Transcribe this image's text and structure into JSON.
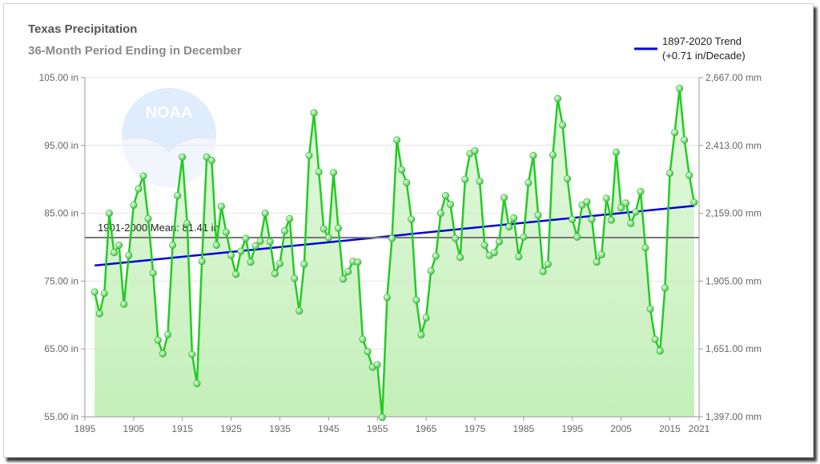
{
  "colors": {
    "series_line": "#22cc22",
    "area_top": "#d6f5d0",
    "area_bottom": "#c4efb8",
    "trend": "#0000dd",
    "mean": "#777777",
    "grid": "#e4e4e4",
    "axis": "#999999"
  },
  "logo_icon": "noaa-logo-icon",
  "logo_text": "NOAA",
  "chart_data": {
    "type": "line",
    "title": "Texas Precipitation",
    "subtitle": "36-Month Period Ending in December",
    "xlim": [
      1895,
      2021
    ],
    "ylim": [
      55,
      105
    ],
    "y2lim": [
      1397,
      2667
    ],
    "x_ticks": [
      1895,
      1905,
      1915,
      1925,
      1935,
      1945,
      1955,
      1965,
      1975,
      1985,
      1995,
      2005,
      2015,
      2021
    ],
    "y_ticks": [
      {
        "value": 55,
        "label": "55.00 in"
      },
      {
        "value": 65,
        "label": "65.00 in"
      },
      {
        "value": 75,
        "label": "75.00 in"
      },
      {
        "value": 85,
        "label": "85.00 in"
      },
      {
        "value": 95,
        "label": "95.00 in"
      },
      {
        "value": 105,
        "label": "105.00 in"
      }
    ],
    "y2_ticks": [
      {
        "value": 1397,
        "label": "1,397.00 mm"
      },
      {
        "value": 1651,
        "label": "1,651.00 mm"
      },
      {
        "value": 1905,
        "label": "1,905.00 mm"
      },
      {
        "value": 2159,
        "label": "2,159.00 mm"
      },
      {
        "value": 2413,
        "label": "2,413.00 mm"
      },
      {
        "value": 2667,
        "label": "2,667.00 mm"
      }
    ],
    "grid": true,
    "legend_position": "top-right",
    "legend": [
      {
        "line1": "1897-2020 Trend",
        "line2": "(+0.71 in/Decade)"
      }
    ],
    "mean": {
      "label": "1901-2000 Mean: 81.41 in",
      "value": 81.41
    },
    "trend": {
      "x": [
        1897,
        2020
      ],
      "y": [
        77.3,
        86.1
      ]
    },
    "series": [
      {
        "x_start": 1897,
        "values": [
          73.4,
          70.2,
          73.2,
          85.0,
          79.2,
          80.3,
          71.6,
          78.8,
          86.2,
          88.6,
          90.5,
          84.2,
          76.2,
          66.3,
          64.3,
          67.1,
          80.3,
          87.6,
          93.3,
          83.5,
          64.2,
          59.9,
          77.9,
          93.3,
          92.8,
          80.3,
          86.0,
          82.2,
          78.8,
          76.0,
          79.4,
          81.3,
          77.8,
          80.2,
          80.9,
          85.0,
          80.8,
          76.1,
          77.6,
          82.4,
          84.2,
          75.4,
          70.6,
          77.5,
          93.5,
          99.8,
          91.1,
          82.7,
          81.4,
          91.0,
          82.8,
          75.3,
          76.4,
          77.9,
          77.8,
          66.4,
          64.6,
          62.3,
          62.7,
          54.9,
          72.6,
          81.3,
          95.8,
          91.4,
          89.5,
          84.1,
          72.2,
          67.1,
          69.6,
          76.5,
          78.7,
          85.0,
          87.6,
          86.3,
          81.3,
          78.5,
          90.0,
          93.8,
          94.2,
          89.7,
          80.3,
          78.8,
          79.2,
          80.8,
          87.3,
          83.0,
          84.3,
          78.6,
          81.5,
          89.5,
          93.5,
          84.7,
          76.4,
          77.5,
          93.6,
          101.9,
          98.0,
          90.1,
          84.1,
          81.5,
          86.2,
          86.7,
          84.1,
          77.8,
          78.9,
          87.2,
          84.0,
          94.0,
          85.8,
          86.5,
          83.5,
          85.2,
          88.2,
          79.9,
          70.9,
          66.4,
          64.7,
          74.0,
          90.9,
          96.9,
          103.4,
          95.8,
          90.6,
          86.6
        ]
      }
    ]
  }
}
